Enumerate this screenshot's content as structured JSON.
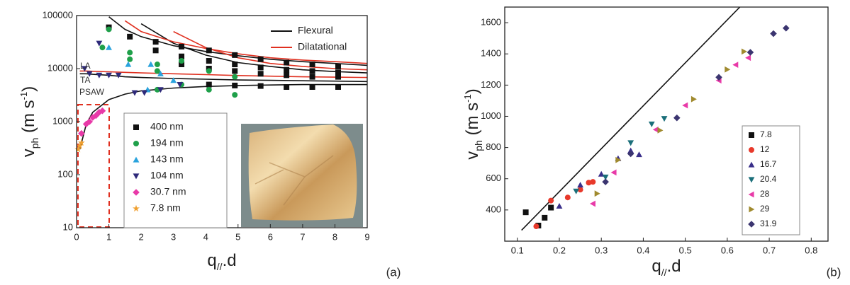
{
  "chart_data": [
    {
      "type": "scatter",
      "yscale": "log",
      "xlim": [
        0,
        9
      ],
      "xticks": [
        0,
        1,
        2,
        3,
        4,
        5,
        6,
        7,
        8,
        9
      ],
      "ylim": [
        10,
        100000
      ],
      "yticks": [
        10,
        100,
        1000,
        10000,
        100000
      ],
      "xlabel": [
        "q",
        "//",
        ".d"
      ],
      "ylabel": [
        "v",
        "ph",
        " (m s",
        "-1",
        ")"
      ],
      "annotations": [
        "LA",
        "TA",
        "PSAW"
      ],
      "panel_label": "(a)",
      "series": [
        {
          "name": "400 nm",
          "color": "#111111",
          "marker": "square",
          "x": [
            1.0,
            1.65,
            2.45,
            3.25,
            4.1,
            4.9,
            5.7,
            6.5,
            7.3,
            8.1,
            2.45,
            3.25,
            4.1,
            4.9,
            5.7,
            6.5,
            7.3,
            8.1,
            3.25,
            4.1,
            4.9,
            5.7,
            6.5,
            7.3,
            8.1,
            4.1,
            4.9,
            5.7,
            6.5,
            7.3,
            8.1
          ],
          "values": [
            60000,
            40000,
            32000,
            26000,
            22000,
            18000,
            15000,
            13000,
            12000,
            11000,
            22000,
            17000,
            14000,
            12000,
            10500,
            9500,
            9000,
            8500,
            12000,
            10000,
            9000,
            8000,
            7500,
            7000,
            7000,
            5000,
            4800,
            4700,
            4500,
            4500,
            4500
          ]
        },
        {
          "name": "194 nm",
          "color": "#1fa04a",
          "marker": "circle",
          "x": [
            0.8,
            1.0,
            1.65,
            1.65,
            2.5,
            2.5,
            2.5,
            3.25,
            3.25,
            4.1,
            4.1,
            4.9,
            4.9
          ],
          "values": [
            25000,
            55000,
            20000,
            15000,
            9000,
            12000,
            4000,
            5000,
            14000,
            9000,
            4000,
            7000,
            3200
          ]
        },
        {
          "name": "143 nm",
          "color": "#2aa3dd",
          "marker": "triangle-up",
          "x": [
            1.0,
            1.6,
            2.3,
            2.6,
            3.0,
            2.2
          ],
          "values": [
            25000,
            12000,
            12000,
            8000,
            6000,
            4000
          ]
        },
        {
          "name": "104 nm",
          "color": "#2e2a7a",
          "marker": "triangle-down",
          "x": [
            0.25,
            0.7,
            0.4,
            0.7,
            1.0,
            1.3,
            1.8,
            2.1,
            2.6,
            3.2
          ],
          "values": [
            10000,
            30000,
            8000,
            7500,
            7500,
            7500,
            3500,
            3500,
            4000,
            5000
          ]
        },
        {
          "name": "30.7 nm",
          "color": "#e83aa8",
          "marker": "diamond",
          "x": [
            0.15,
            0.3,
            0.4,
            0.5,
            0.6,
            0.7,
            0.8
          ],
          "values": [
            600,
            900,
            1000,
            1200,
            1300,
            1500,
            1600
          ]
        },
        {
          "name": "7.8 nm",
          "color": "#f0a030",
          "marker": "star",
          "x": [
            0.05,
            0.1,
            0.15
          ],
          "values": [
            300,
            350,
            400
          ]
        }
      ],
      "curves": [
        {
          "name": "Flexural",
          "color": "#111111",
          "x": [
            0.1,
            0.3,
            0.5,
            1,
            1.5,
            2,
            3,
            4,
            5,
            6,
            7,
            8,
            9
          ],
          "branches": [
            [
              300,
              900,
              1500,
              2600,
              3300,
              3800,
              4300,
              4600,
              4800,
              4900,
              5000,
              5000,
              5000
            ],
            [
              null,
              null,
              null,
              95000,
              55000,
              40000,
              27000,
              21000,
              17500,
              15000,
              13500,
              12500,
              11500
            ],
            [
              null,
              null,
              null,
              null,
              null,
              70000,
              30000,
              18000,
              13000,
              11000,
              9500,
              8800,
              8300
            ],
            [
              8000,
              8000,
              7800,
              7500,
              7000,
              6800,
              6500,
              6300,
              6100,
              6000,
              5900,
              5800,
              5700
            ]
          ]
        },
        {
          "name": "Dilatational",
          "color": "#e03020",
          "x": [
            0.1,
            0.3,
            0.5,
            1,
            1.5,
            2,
            3,
            4,
            5,
            6,
            7,
            8,
            9
          ],
          "branches": [
            [
              9000,
              9000,
              8900,
              8700,
              8500,
              8300,
              8000,
              7700,
              7400,
              7200,
              7000,
              6900,
              6800
            ],
            [
              null,
              null,
              null,
              null,
              80000,
              50000,
              32000,
              24000,
              19000,
              16000,
              14500,
              13500,
              12500
            ],
            [
              null,
              null,
              null,
              null,
              null,
              null,
              50000,
              25000,
              16000,
              12500,
              11000,
              10000,
              9500
            ]
          ]
        }
      ]
    },
    {
      "type": "scatter",
      "xlim": [
        0.07,
        0.84
      ],
      "xticks": [
        0.1,
        0.2,
        0.3,
        0.4,
        0.5,
        0.6,
        0.7,
        0.8
      ],
      "ylim": [
        200,
        1700
      ],
      "yticks": [
        400,
        600,
        800,
        1000,
        1200,
        1400,
        1600
      ],
      "xlabel": [
        "q",
        "//",
        ".d"
      ],
      "ylabel": [
        "v",
        "ph",
        " (m s",
        "-1",
        ")"
      ],
      "panel_label": "(b)",
      "series": [
        {
          "name": "7.8",
          "color": "#111111",
          "marker": "square",
          "x": [
            0.12,
            0.15,
            0.165,
            0.18
          ],
          "values": [
            385,
            300,
            350,
            415
          ]
        },
        {
          "name": "12",
          "color": "#e8392b",
          "marker": "circle",
          "x": [
            0.145,
            0.18,
            0.22,
            0.25,
            0.27,
            0.28
          ],
          "values": [
            295,
            460,
            480,
            530,
            575,
            580
          ]
        },
        {
          "name": "16.7",
          "color": "#3a2f8a",
          "marker": "triangle-up",
          "x": [
            0.2,
            0.25,
            0.3,
            0.34,
            0.37,
            0.39
          ],
          "values": [
            425,
            560,
            630,
            730,
            780,
            755
          ]
        },
        {
          "name": "20.4",
          "color": "#1b6f7a",
          "marker": "triangle-down",
          "x": [
            0.24,
            0.31,
            0.37,
            0.42,
            0.45
          ],
          "values": [
            520,
            610,
            830,
            950,
            985
          ]
        },
        {
          "name": "28",
          "color": "#e83aa8",
          "marker": "triangle-left",
          "x": [
            0.28,
            0.33,
            0.43,
            0.5,
            0.58,
            0.62,
            0.65
          ],
          "values": [
            440,
            640,
            915,
            1070,
            1230,
            1330,
            1375
          ]
        },
        {
          "name": "29",
          "color": "#a08a2e",
          "marker": "triangle-right",
          "x": [
            0.29,
            0.34,
            0.44,
            0.52,
            0.6,
            0.64
          ],
          "values": [
            505,
            720,
            910,
            1110,
            1300,
            1415
          ]
        },
        {
          "name": "31.9",
          "color": "#3b3570",
          "marker": "diamond",
          "x": [
            0.31,
            0.37,
            0.48,
            0.58,
            0.655,
            0.71,
            0.74
          ],
          "values": [
            580,
            760,
            990,
            1250,
            1410,
            1530,
            1565
          ]
        }
      ],
      "curves": [
        {
          "color": "#111111",
          "x": [
            0.11,
            0.63
          ],
          "branches": [
            [
              270,
              1700
            ]
          ]
        }
      ]
    }
  ]
}
